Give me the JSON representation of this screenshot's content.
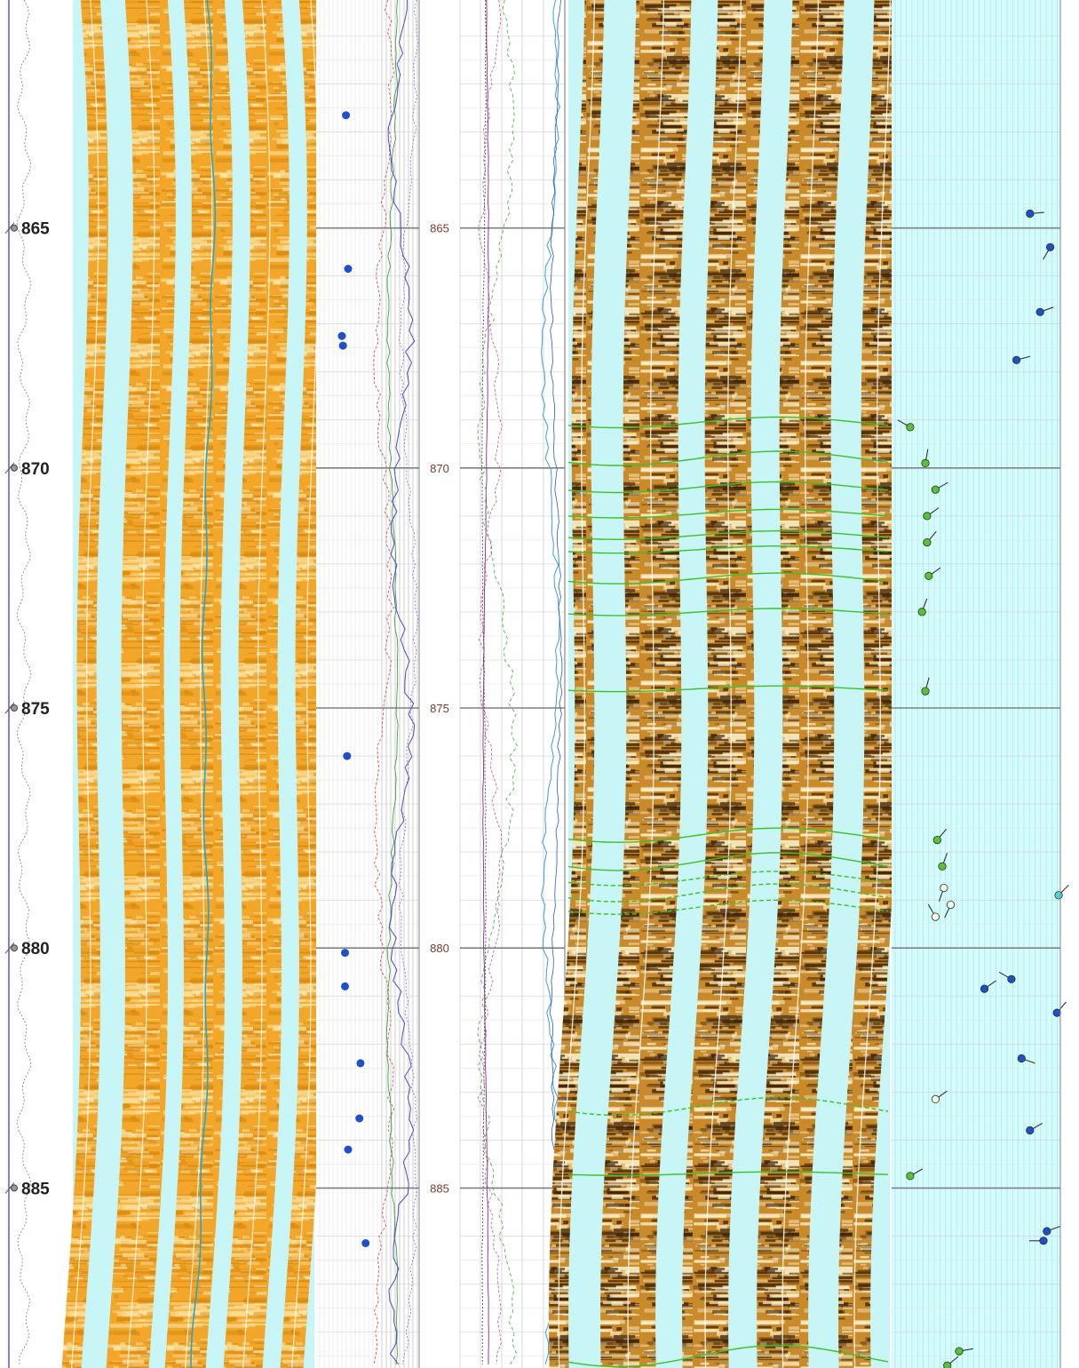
{
  "depth_axis": {
    "ticks": [
      865,
      870,
      875,
      880,
      885
    ],
    "range": [
      860.25,
      888.75
    ]
  },
  "colors": {
    "borehole_gap": "#c8f5f5",
    "static_image_base": "#f2a62a",
    "static_image_light": "#fbe7a8",
    "dynamic_image_base": "#c98a2c",
    "dynamic_image_dark": "#3b2105",
    "dynamic_image_light": "#fbf0c8",
    "sinusoid": "#3fbf2a",
    "tadpole_blue": "#1f4fcf",
    "tadpole_green": "#5bbf3a",
    "tadpole_white": "#f4f8e8",
    "tadpole_cyan": "#4fd8e0",
    "depth_label_right": "#7a3a2a"
  },
  "chart_data": {
    "type": "scatter",
    "title": "",
    "xlabel": "",
    "ylabel": "",
    "ylim": [
      860.25,
      888.75
    ],
    "grid": true,
    "legend": "none",
    "dots_track": {
      "series": [
        {
          "values": [
            {
              "depth": 862.65,
              "x": 0.29
            },
            {
              "depth": 865.85,
              "x": 0.31
            },
            {
              "depth": 867.25,
              "x": 0.25
            },
            {
              "depth": 867.45,
              "x": 0.26
            },
            {
              "depth": 876.0,
              "x": 0.3
            },
            {
              "depth": 880.1,
              "x": 0.28
            },
            {
              "depth": 880.8,
              "x": 0.28
            },
            {
              "depth": 882.4,
              "x": 0.43
            },
            {
              "depth": 883.55,
              "x": 0.42
            },
            {
              "depth": 884.2,
              "x": 0.31
            },
            {
              "depth": 886.15,
              "x": 0.48
            }
          ]
        }
      ]
    },
    "tadpoles": [
      {
        "depth": 864.7,
        "x": 0.82,
        "az": 85,
        "class": "blue"
      },
      {
        "depth": 865.4,
        "x": 0.94,
        "az": 210,
        "class": "blue"
      },
      {
        "depth": 866.75,
        "x": 0.88,
        "az": 70,
        "class": "blue"
      },
      {
        "depth": 867.75,
        "x": 0.74,
        "az": 75,
        "class": "blue"
      },
      {
        "depth": 869.15,
        "x": 0.11,
        "az": 300,
        "class": "green"
      },
      {
        "depth": 869.9,
        "x": 0.2,
        "az": 10,
        "class": "green"
      },
      {
        "depth": 870.45,
        "x": 0.26,
        "az": 60,
        "class": "green"
      },
      {
        "depth": 871.0,
        "x": 0.21,
        "az": 55,
        "class": "green"
      },
      {
        "depth": 871.55,
        "x": 0.21,
        "az": 40,
        "class": "green"
      },
      {
        "depth": 872.25,
        "x": 0.22,
        "az": 55,
        "class": "green"
      },
      {
        "depth": 873.0,
        "x": 0.18,
        "az": 20,
        "class": "green"
      },
      {
        "depth": 874.65,
        "x": 0.2,
        "az": 15,
        "class": "green"
      },
      {
        "depth": 877.75,
        "x": 0.27,
        "az": 40,
        "class": "green"
      },
      {
        "depth": 878.3,
        "x": 0.3,
        "az": 20,
        "class": "green"
      },
      {
        "depth": 878.75,
        "x": 0.31,
        "az": 200,
        "class": "white"
      },
      {
        "depth": 879.1,
        "x": 0.35,
        "az": 205,
        "class": "white"
      },
      {
        "depth": 879.35,
        "x": 0.26,
        "az": 330,
        "class": "white"
      },
      {
        "depth": 878.9,
        "x": 0.99,
        "az": 45,
        "class": "cyan"
      },
      {
        "depth": 880.65,
        "x": 0.71,
        "az": 300,
        "class": "blue"
      },
      {
        "depth": 880.85,
        "x": 0.55,
        "az": 55,
        "class": "blue"
      },
      {
        "depth": 881.35,
        "x": 0.98,
        "az": 40,
        "class": "blue"
      },
      {
        "depth": 882.3,
        "x": 0.77,
        "az": 110,
        "class": "blue"
      },
      {
        "depth": 883.15,
        "x": 0.26,
        "az": 55,
        "class": "white"
      },
      {
        "depth": 883.8,
        "x": 0.82,
        "az": 60,
        "class": "blue"
      },
      {
        "depth": 884.75,
        "x": 0.11,
        "az": 60,
        "class": "green"
      },
      {
        "depth": 886.1,
        "x": 0.9,
        "az": 270,
        "class": "blue"
      },
      {
        "depth": 885.9,
        "x": 0.92,
        "az": 70,
        "class": "blue"
      },
      {
        "depth": 888.4,
        "x": 0.4,
        "az": 80,
        "class": "green"
      },
      {
        "depth": 888.7,
        "x": 0.33,
        "az": 50,
        "class": "green"
      }
    ],
    "sinusoids": [
      {
        "depth": 869.05,
        "amp": 0.15,
        "style": "solid"
      },
      {
        "depth": 869.8,
        "amp": 0.2,
        "style": "solid"
      },
      {
        "depth": 870.4,
        "amp": 0.15,
        "style": "solid"
      },
      {
        "depth": 870.95,
        "amp": 0.12,
        "style": "solid"
      },
      {
        "depth": 871.4,
        "amp": 0.12,
        "style": "solid"
      },
      {
        "depth": 871.7,
        "amp": 0.1,
        "style": "solid"
      },
      {
        "depth": 872.3,
        "amp": 0.15,
        "style": "solid"
      },
      {
        "depth": 873.0,
        "amp": 0.1,
        "style": "solid"
      },
      {
        "depth": 874.6,
        "amp": 0.08,
        "style": "solid"
      },
      {
        "depth": 877.65,
        "amp": 0.2,
        "style": "solid"
      },
      {
        "depth": 878.2,
        "amp": 0.25,
        "style": "solid"
      },
      {
        "depth": 878.55,
        "amp": 0.2,
        "style": "dashed"
      },
      {
        "depth": 878.85,
        "amp": 0.25,
        "style": "dashed"
      },
      {
        "depth": 879.15,
        "amp": 0.2,
        "style": "dashed"
      },
      {
        "depth": 883.3,
        "amp": 0.25,
        "style": "dashed"
      },
      {
        "depth": 884.7,
        "amp": 0.05,
        "style": "solid"
      },
      {
        "depth": 888.5,
        "amp": 0.3,
        "style": "solid"
      }
    ]
  }
}
